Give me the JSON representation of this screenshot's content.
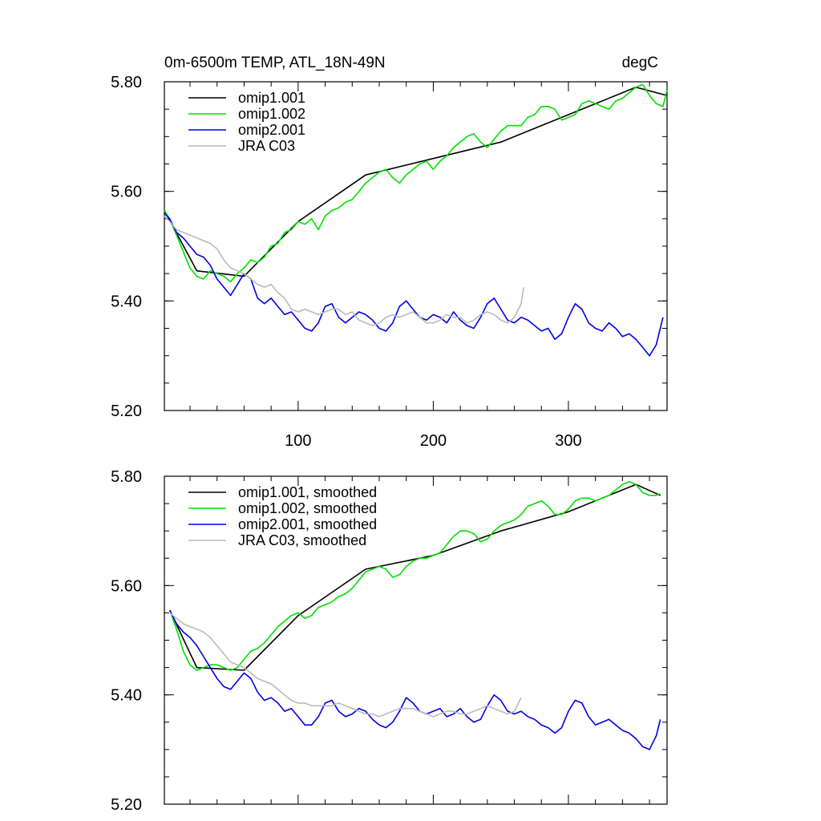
{
  "header": {
    "title": "0m-6500m TEMP, ATL_18N-49N",
    "units": "degC"
  },
  "colors": {
    "omip1_001": "#000000",
    "omip1_002": "#00e000",
    "omip2_001": "#0000e6",
    "jra_c03": "#bbbbbb"
  },
  "chart_data": [
    {
      "type": "line",
      "panel": "raw",
      "xlim": [
        1,
        373
      ],
      "ylim": [
        5.2,
        5.8
      ],
      "yticks": [
        "5.20",
        "5.40",
        "5.60",
        "5.80"
      ],
      "xticks": [
        100,
        200,
        300
      ],
      "xtick_labels": [
        "100",
        "200",
        "300"
      ],
      "legend": [
        "omip1.001",
        "omip1.002",
        "omip2.001",
        "JRA C03"
      ],
      "series": [
        {
          "name": "omip1.001",
          "color": "#000000",
          "x": [
            1,
            25,
            60,
            100,
            150,
            200,
            250,
            300,
            350,
            373
          ],
          "values": [
            5.565,
            5.455,
            5.445,
            5.545,
            5.63,
            5.66,
            5.69,
            5.74,
            5.79,
            5.775
          ]
        },
        {
          "name": "omip1.002",
          "color": "#00e000",
          "x": [
            1,
            5,
            10,
            15,
            20,
            25,
            30,
            35,
            40,
            45,
            50,
            55,
            60,
            65,
            70,
            75,
            80,
            85,
            90,
            95,
            100,
            105,
            110,
            115,
            120,
            125,
            130,
            135,
            140,
            145,
            150,
            155,
            160,
            165,
            170,
            175,
            180,
            185,
            190,
            195,
            200,
            205,
            210,
            215,
            220,
            225,
            230,
            235,
            240,
            245,
            250,
            255,
            260,
            265,
            270,
            275,
            280,
            285,
            290,
            295,
            300,
            305,
            310,
            315,
            320,
            325,
            330,
            335,
            340,
            345,
            350,
            355,
            360,
            365,
            370,
            373
          ],
          "values": [
            5.565,
            5.55,
            5.52,
            5.49,
            5.46,
            5.445,
            5.44,
            5.455,
            5.45,
            5.445,
            5.435,
            5.45,
            5.46,
            5.475,
            5.47,
            5.48,
            5.5,
            5.505,
            5.525,
            5.53,
            5.545,
            5.54,
            5.55,
            5.53,
            5.555,
            5.565,
            5.57,
            5.58,
            5.585,
            5.6,
            5.615,
            5.625,
            5.635,
            5.64,
            5.625,
            5.615,
            5.63,
            5.64,
            5.65,
            5.655,
            5.64,
            5.655,
            5.665,
            5.68,
            5.69,
            5.7,
            5.705,
            5.69,
            5.68,
            5.695,
            5.71,
            5.72,
            5.72,
            5.72,
            5.735,
            5.74,
            5.755,
            5.755,
            5.75,
            5.73,
            5.735,
            5.74,
            5.76,
            5.765,
            5.76,
            5.755,
            5.75,
            5.765,
            5.77,
            5.78,
            5.79,
            5.795,
            5.775,
            5.76,
            5.755,
            5.785
          ]
        },
        {
          "name": "omip2.001",
          "color": "#0000e6",
          "x": [
            1,
            5,
            10,
            15,
            20,
            25,
            30,
            35,
            40,
            45,
            50,
            55,
            60,
            65,
            70,
            75,
            80,
            85,
            90,
            95,
            100,
            105,
            110,
            115,
            120,
            125,
            130,
            135,
            140,
            145,
            150,
            155,
            160,
            165,
            170,
            175,
            180,
            185,
            190,
            195,
            200,
            205,
            210,
            215,
            220,
            225,
            230,
            235,
            240,
            245,
            250,
            255,
            260,
            265,
            270,
            275,
            280,
            285,
            290,
            295,
            300,
            305,
            310,
            315,
            320,
            325,
            330,
            335,
            340,
            345,
            350,
            355,
            360,
            365,
            370
          ],
          "values": [
            5.56,
            5.55,
            5.525,
            5.515,
            5.5,
            5.485,
            5.48,
            5.465,
            5.44,
            5.425,
            5.41,
            5.43,
            5.45,
            5.44,
            5.405,
            5.395,
            5.405,
            5.39,
            5.375,
            5.38,
            5.365,
            5.35,
            5.345,
            5.36,
            5.39,
            5.395,
            5.37,
            5.36,
            5.37,
            5.38,
            5.375,
            5.365,
            5.35,
            5.345,
            5.36,
            5.39,
            5.4,
            5.385,
            5.37,
            5.365,
            5.375,
            5.37,
            5.36,
            5.38,
            5.365,
            5.355,
            5.35,
            5.37,
            5.395,
            5.405,
            5.385,
            5.365,
            5.36,
            5.37,
            5.365,
            5.355,
            5.345,
            5.35,
            5.33,
            5.34,
            5.37,
            5.395,
            5.385,
            5.36,
            5.35,
            5.345,
            5.36,
            5.35,
            5.335,
            5.34,
            5.33,
            5.315,
            5.3,
            5.32,
            5.37
          ]
        },
        {
          "name": "JRA C03",
          "color": "#bbbbbb",
          "x": [
            1,
            5,
            10,
            15,
            20,
            25,
            30,
            35,
            40,
            45,
            50,
            55,
            60,
            65,
            70,
            75,
            80,
            85,
            90,
            95,
            100,
            105,
            110,
            115,
            120,
            125,
            130,
            135,
            140,
            145,
            150,
            155,
            160,
            165,
            170,
            175,
            180,
            185,
            190,
            195,
            200,
            205,
            210,
            215,
            220,
            225,
            230,
            235,
            240,
            245,
            250,
            255,
            260,
            265,
            267
          ],
          "values": [
            5.555,
            5.545,
            5.53,
            5.525,
            5.52,
            5.515,
            5.51,
            5.505,
            5.495,
            5.475,
            5.46,
            5.455,
            5.45,
            5.44,
            5.43,
            5.425,
            5.43,
            5.415,
            5.405,
            5.385,
            5.38,
            5.385,
            5.38,
            5.375,
            5.38,
            5.385,
            5.385,
            5.375,
            5.38,
            5.365,
            5.36,
            5.355,
            5.36,
            5.37,
            5.375,
            5.37,
            5.375,
            5.38,
            5.37,
            5.36,
            5.36,
            5.365,
            5.375,
            5.37,
            5.37,
            5.36,
            5.365,
            5.375,
            5.38,
            5.375,
            5.365,
            5.36,
            5.37,
            5.395,
            5.425
          ]
        }
      ]
    },
    {
      "type": "line",
      "panel": "smoothed",
      "xlim": [
        1,
        373
      ],
      "ylim": [
        5.2,
        5.8
      ],
      "yticks": [
        "5.20",
        "5.40",
        "5.60",
        "5.80"
      ],
      "xticks": [
        100,
        200,
        300
      ],
      "xtick_labels": [],
      "legend": [
        "omip1.001, smoothed",
        "omip1.002, smoothed",
        "omip2.001, smoothed",
        "JRA C03, smoothed"
      ],
      "series": [
        {
          "name": "omip1.001, smoothed",
          "color": "#000000",
          "x": [
            5,
            25,
            60,
            100,
            150,
            200,
            250,
            300,
            350,
            368
          ],
          "values": [
            5.555,
            5.45,
            5.445,
            5.545,
            5.63,
            5.655,
            5.7,
            5.735,
            5.785,
            5.765
          ]
        },
        {
          "name": "omip1.002, smoothed",
          "color": "#00e000",
          "x": [
            5,
            10,
            15,
            20,
            25,
            30,
            35,
            40,
            45,
            50,
            55,
            60,
            65,
            70,
            75,
            80,
            85,
            90,
            95,
            100,
            105,
            110,
            115,
            120,
            125,
            130,
            135,
            140,
            145,
            150,
            155,
            160,
            165,
            170,
            175,
            180,
            185,
            190,
            195,
            200,
            205,
            210,
            215,
            220,
            225,
            230,
            235,
            240,
            245,
            250,
            255,
            260,
            265,
            270,
            275,
            280,
            285,
            290,
            295,
            300,
            305,
            310,
            315,
            320,
            325,
            330,
            335,
            340,
            345,
            350,
            355,
            360,
            365,
            368
          ],
          "values": [
            5.555,
            5.52,
            5.48,
            5.455,
            5.445,
            5.45,
            5.455,
            5.455,
            5.45,
            5.445,
            5.45,
            5.465,
            5.48,
            5.485,
            5.495,
            5.51,
            5.525,
            5.535,
            5.545,
            5.55,
            5.54,
            5.545,
            5.56,
            5.565,
            5.57,
            5.58,
            5.585,
            5.595,
            5.61,
            5.625,
            5.63,
            5.635,
            5.63,
            5.615,
            5.62,
            5.635,
            5.645,
            5.65,
            5.65,
            5.655,
            5.66,
            5.675,
            5.69,
            5.7,
            5.7,
            5.695,
            5.68,
            5.685,
            5.7,
            5.71,
            5.715,
            5.72,
            5.73,
            5.745,
            5.75,
            5.755,
            5.745,
            5.73,
            5.73,
            5.74,
            5.755,
            5.76,
            5.76,
            5.755,
            5.76,
            5.765,
            5.775,
            5.785,
            5.79,
            5.785,
            5.77,
            5.765,
            5.765,
            5.768
          ]
        },
        {
          "name": "omip2.001, smoothed",
          "color": "#0000e6",
          "x": [
            5,
            10,
            15,
            20,
            25,
            30,
            35,
            40,
            45,
            50,
            55,
            60,
            65,
            70,
            75,
            80,
            85,
            90,
            95,
            100,
            105,
            110,
            115,
            120,
            125,
            130,
            135,
            140,
            145,
            150,
            155,
            160,
            165,
            170,
            175,
            180,
            185,
            190,
            195,
            200,
            205,
            210,
            215,
            220,
            225,
            230,
            235,
            240,
            245,
            250,
            255,
            260,
            265,
            270,
            275,
            280,
            285,
            290,
            295,
            300,
            305,
            310,
            315,
            320,
            325,
            330,
            335,
            340,
            345,
            350,
            355,
            360,
            365,
            368
          ],
          "values": [
            5.555,
            5.53,
            5.515,
            5.505,
            5.49,
            5.47,
            5.45,
            5.43,
            5.415,
            5.41,
            5.425,
            5.44,
            5.43,
            5.405,
            5.39,
            5.395,
            5.385,
            5.37,
            5.375,
            5.36,
            5.345,
            5.345,
            5.36,
            5.385,
            5.39,
            5.37,
            5.36,
            5.365,
            5.375,
            5.37,
            5.355,
            5.345,
            5.34,
            5.35,
            5.37,
            5.395,
            5.385,
            5.37,
            5.365,
            5.37,
            5.375,
            5.36,
            5.365,
            5.375,
            5.36,
            5.35,
            5.355,
            5.38,
            5.4,
            5.39,
            5.37,
            5.365,
            5.37,
            5.36,
            5.355,
            5.345,
            5.34,
            5.33,
            5.34,
            5.37,
            5.39,
            5.385,
            5.36,
            5.345,
            5.35,
            5.355,
            5.345,
            5.335,
            5.33,
            5.32,
            5.305,
            5.3,
            5.325,
            5.355
          ]
        },
        {
          "name": "JRA C03, smoothed",
          "color": "#bbbbbb",
          "x": [
            5,
            10,
            15,
            20,
            25,
            30,
            35,
            40,
            45,
            50,
            55,
            60,
            65,
            70,
            75,
            80,
            85,
            90,
            95,
            100,
            105,
            110,
            115,
            120,
            125,
            130,
            135,
            140,
            145,
            150,
            155,
            160,
            165,
            170,
            175,
            180,
            185,
            190,
            195,
            200,
            205,
            210,
            215,
            220,
            225,
            230,
            235,
            240,
            245,
            250,
            255,
            260,
            265
          ],
          "values": [
            5.55,
            5.54,
            5.53,
            5.525,
            5.52,
            5.515,
            5.505,
            5.49,
            5.475,
            5.46,
            5.455,
            5.45,
            5.44,
            5.43,
            5.425,
            5.42,
            5.41,
            5.4,
            5.39,
            5.385,
            5.385,
            5.38,
            5.38,
            5.38,
            5.38,
            5.385,
            5.38,
            5.375,
            5.37,
            5.365,
            5.365,
            5.36,
            5.365,
            5.37,
            5.375,
            5.375,
            5.375,
            5.37,
            5.365,
            5.36,
            5.365,
            5.37,
            5.37,
            5.365,
            5.365,
            5.37,
            5.375,
            5.38,
            5.375,
            5.37,
            5.365,
            5.37,
            5.395
          ]
        }
      ]
    }
  ]
}
